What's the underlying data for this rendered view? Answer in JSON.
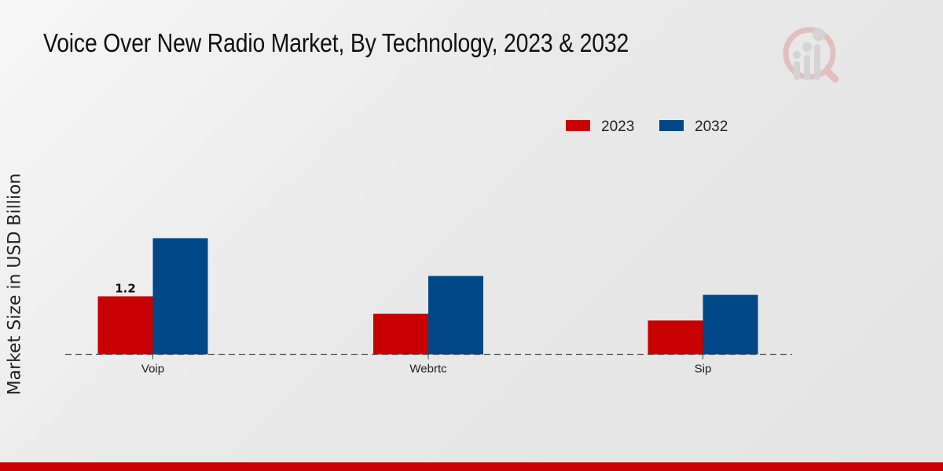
{
  "chart_data": {
    "type": "bar",
    "title": "Voice Over New Radio Market, By Technology, 2023 & 2032",
    "xlabel": "",
    "ylabel": "Market Size in USD Billion",
    "categories": [
      "Voip",
      "Webrtc",
      "Sip"
    ],
    "series": [
      {
        "name": "2023",
        "color": "#c80000",
        "values": [
          1.2,
          0.84,
          0.7
        ]
      },
      {
        "name": "2032",
        "color": "#004788",
        "values": [
          2.4,
          1.62,
          1.23
        ]
      }
    ],
    "data_labels": [
      {
        "series": "2023",
        "category": "Voip",
        "text": "1.2"
      }
    ],
    "grid": false,
    "legend": "top-right",
    "ylim": [
      0,
      3
    ]
  },
  "colors": {
    "footer": "#cc0000",
    "background": "#e8e8e8"
  },
  "logo": {
    "icon": "magnifier-bar-chart-logo"
  }
}
